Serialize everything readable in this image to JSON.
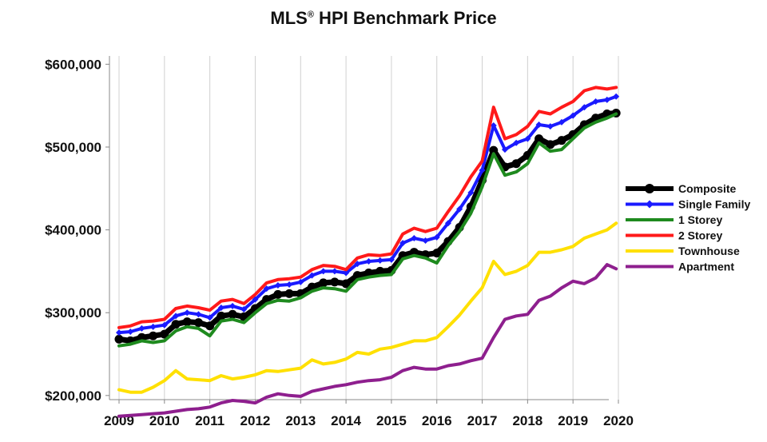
{
  "chart_data": {
    "type": "line",
    "title_main": "MLS",
    "title_reg": "®",
    "title_rest": " HPI Benchmark Price",
    "xlabel": "",
    "ylabel": "",
    "xlim": [
      2009,
      2020
    ],
    "ylim": [
      195000,
      610000
    ],
    "x_ticks": [
      "2009",
      "2010",
      "2011",
      "2012",
      "2013",
      "2014",
      "2015",
      "2016",
      "2017",
      "2018",
      "2019",
      "2020"
    ],
    "y_ticks": [
      {
        "value": 200000,
        "label": "$200,000"
      },
      {
        "value": 300000,
        "label": "$300,000"
      },
      {
        "value": 400000,
        "label": "$400,000"
      },
      {
        "value": 500000,
        "label": "$500,000"
      },
      {
        "value": 600000,
        "label": "$600,000"
      }
    ],
    "grid": "vertical",
    "legend_position": "right",
    "series": [
      {
        "name": "Composite",
        "color": "#000000",
        "marker": "circle",
        "x": [
          2009,
          2009.25,
          2009.5,
          2009.75,
          2010,
          2010.25,
          2010.5,
          2010.75,
          2011,
          2011.25,
          2011.5,
          2011.75,
          2012,
          2012.25,
          2012.5,
          2012.75,
          2013,
          2013.25,
          2013.5,
          2013.75,
          2014,
          2014.25,
          2014.5,
          2014.75,
          2015,
          2015.25,
          2015.5,
          2015.75,
          2016,
          2016.25,
          2016.5,
          2016.75,
          2017,
          2017.25,
          2017.5,
          2017.75,
          2018,
          2018.25,
          2018.5,
          2018.75,
          2019,
          2019.25,
          2019.5,
          2019.75,
          2019.95
        ],
        "y": [
          268000,
          266000,
          270000,
          272000,
          274000,
          286000,
          289000,
          288000,
          284000,
          296000,
          298000,
          295000,
          305000,
          316000,
          322000,
          323000,
          323000,
          331000,
          336000,
          337000,
          335000,
          345000,
          348000,
          350000,
          351000,
          369000,
          373000,
          370000,
          372000,
          386000,
          403000,
          428000,
          460000,
          496000,
          476000,
          480000,
          490000,
          510000,
          503000,
          508000,
          515000,
          527000,
          535000,
          540000,
          541000
        ]
      },
      {
        "name": "Single Family",
        "color": "#1a1aff",
        "marker": "diamond",
        "x": [
          2009,
          2009.25,
          2009.5,
          2009.75,
          2010,
          2010.25,
          2010.5,
          2010.75,
          2011,
          2011.25,
          2011.5,
          2011.75,
          2012,
          2012.25,
          2012.5,
          2012.75,
          2013,
          2013.25,
          2013.5,
          2013.75,
          2014,
          2014.25,
          2014.5,
          2014.75,
          2015,
          2015.25,
          2015.5,
          2015.75,
          2016,
          2016.25,
          2016.5,
          2016.75,
          2017,
          2017.25,
          2017.5,
          2017.75,
          2018,
          2018.25,
          2018.5,
          2018.75,
          2019,
          2019.25,
          2019.5,
          2019.75,
          2019.95
        ],
        "y": [
          276000,
          277000,
          281000,
          283000,
          285000,
          296000,
          300000,
          298000,
          294000,
          306000,
          308000,
          304000,
          316000,
          329000,
          333000,
          334000,
          337000,
          345000,
          350000,
          350000,
          348000,
          359000,
          362000,
          363000,
          364000,
          384000,
          390000,
          387000,
          391000,
          408000,
          425000,
          445000,
          472000,
          526000,
          497000,
          505000,
          510000,
          527000,
          525000,
          530000,
          538000,
          548000,
          555000,
          557000,
          561000
        ]
      },
      {
        "name": "1 Storey",
        "color": "#1e8a1e",
        "marker": "none",
        "x": [
          2009,
          2009.25,
          2009.5,
          2009.75,
          2010,
          2010.25,
          2010.5,
          2010.75,
          2011,
          2011.25,
          2011.5,
          2011.75,
          2012,
          2012.25,
          2012.5,
          2012.75,
          2013,
          2013.25,
          2013.5,
          2013.75,
          2014,
          2014.25,
          2014.5,
          2014.75,
          2015,
          2015.25,
          2015.5,
          2015.75,
          2016,
          2016.25,
          2016.5,
          2016.75,
          2017,
          2017.25,
          2017.5,
          2017.75,
          2018,
          2018.25,
          2018.5,
          2018.75,
          2019,
          2019.25,
          2019.5,
          2019.75,
          2019.95
        ],
        "y": [
          260000,
          262000,
          266000,
          264000,
          266000,
          278000,
          283000,
          281000,
          272000,
          290000,
          292000,
          288000,
          300000,
          311000,
          315000,
          314000,
          318000,
          326000,
          330000,
          329000,
          326000,
          340000,
          343000,
          345000,
          346000,
          365000,
          369000,
          366000,
          360000,
          381000,
          398000,
          420000,
          452000,
          492000,
          466000,
          470000,
          480000,
          505000,
          495000,
          497000,
          510000,
          523000,
          530000,
          535000,
          540000
        ]
      },
      {
        "name": "2 Storey",
        "color": "#ff1a1a",
        "marker": "none",
        "x": [
          2009,
          2009.25,
          2009.5,
          2009.75,
          2010,
          2010.25,
          2010.5,
          2010.75,
          2011,
          2011.25,
          2011.5,
          2011.75,
          2012,
          2012.25,
          2012.5,
          2012.75,
          2013,
          2013.25,
          2013.5,
          2013.75,
          2014,
          2014.25,
          2014.5,
          2014.75,
          2015,
          2015.25,
          2015.5,
          2015.75,
          2016,
          2016.25,
          2016.5,
          2016.75,
          2017,
          2017.25,
          2017.5,
          2017.75,
          2018,
          2018.25,
          2018.5,
          2018.75,
          2019,
          2019.25,
          2019.5,
          2019.75,
          2019.95
        ],
        "y": [
          282000,
          284000,
          289000,
          290000,
          292000,
          305000,
          308000,
          306000,
          303000,
          314000,
          316000,
          311000,
          322000,
          336000,
          340000,
          341000,
          343000,
          352000,
          357000,
          356000,
          352000,
          366000,
          370000,
          369000,
          371000,
          395000,
          402000,
          398000,
          402000,
          422000,
          441000,
          464000,
          483000,
          548000,
          510000,
          515000,
          525000,
          543000,
          540000,
          548000,
          555000,
          568000,
          572000,
          570000,
          572000
        ]
      },
      {
        "name": "Townhouse",
        "color": "#ffe000",
        "marker": "none",
        "x": [
          2009,
          2009.25,
          2009.5,
          2009.75,
          2010,
          2010.25,
          2010.5,
          2010.75,
          2011,
          2011.25,
          2011.5,
          2011.75,
          2012,
          2012.25,
          2012.5,
          2012.75,
          2013,
          2013.25,
          2013.5,
          2013.75,
          2014,
          2014.25,
          2014.5,
          2014.75,
          2015,
          2015.25,
          2015.5,
          2015.75,
          2016,
          2016.25,
          2016.5,
          2016.75,
          2017,
          2017.25,
          2017.5,
          2017.75,
          2018,
          2018.25,
          2018.5,
          2018.75,
          2019,
          2019.25,
          2019.5,
          2019.75,
          2019.95
        ],
        "y": [
          207000,
          204000,
          204000,
          210000,
          218000,
          230000,
          220000,
          219000,
          218000,
          224000,
          220000,
          222000,
          225000,
          230000,
          229000,
          231000,
          233000,
          243000,
          238000,
          240000,
          244000,
          252000,
          250000,
          256000,
          258000,
          262000,
          266000,
          266000,
          270000,
          283000,
          297000,
          314000,
          330000,
          362000,
          346000,
          350000,
          357000,
          373000,
          373000,
          376000,
          380000,
          390000,
          395000,
          400000,
          408000
        ]
      },
      {
        "name": "Apartment",
        "color": "#8e1f8e",
        "marker": "none",
        "x": [
          2009,
          2009.25,
          2009.5,
          2009.75,
          2010,
          2010.25,
          2010.5,
          2010.75,
          2011,
          2011.25,
          2011.5,
          2011.75,
          2012,
          2012.25,
          2012.5,
          2012.75,
          2013,
          2013.25,
          2013.5,
          2013.75,
          2014,
          2014.25,
          2014.5,
          2014.75,
          2015,
          2015.25,
          2015.5,
          2015.75,
          2016,
          2016.25,
          2016.5,
          2016.75,
          2017,
          2017.25,
          2017.5,
          2017.75,
          2018,
          2018.25,
          2018.5,
          2018.75,
          2019,
          2019.25,
          2019.5,
          2019.75,
          2019.95
        ],
        "y": [
          175000,
          176000,
          177000,
          178000,
          179000,
          181000,
          183000,
          184000,
          186000,
          191000,
          194000,
          193000,
          191000,
          198000,
          202000,
          200000,
          199000,
          205000,
          208000,
          211000,
          213000,
          216000,
          218000,
          219000,
          222000,
          230000,
          234000,
          232000,
          232000,
          236000,
          238000,
          242000,
          245000,
          270000,
          292000,
          296000,
          298000,
          315000,
          320000,
          330000,
          338000,
          335000,
          342000,
          358000,
          353000
        ]
      }
    ]
  }
}
